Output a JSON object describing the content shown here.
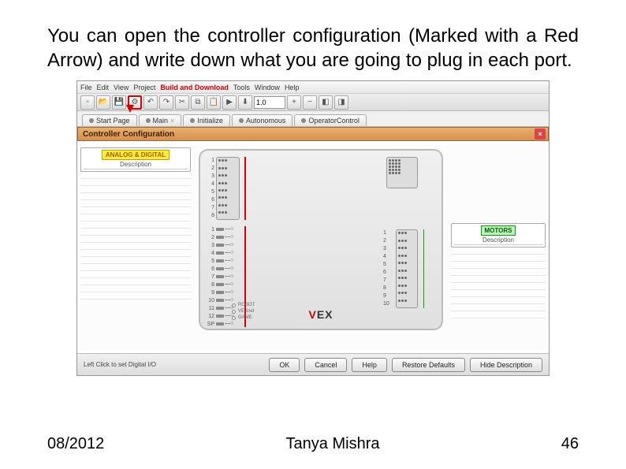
{
  "intro": "You can open the controller configuration (Marked with a Red Arrow) and write down what you are going to plug in each port.",
  "menu": {
    "items": [
      "File",
      "Edit",
      "View",
      "Project",
      "Build and Download",
      "Tools",
      "Window",
      "Help"
    ],
    "highlight_index": 4
  },
  "toolbar": {
    "zoom": "1.0",
    "icons": [
      "new",
      "open",
      "save",
      "config",
      "undo",
      "redo",
      "cut",
      "copy",
      "paste",
      "find",
      "build",
      "download",
      "play",
      "stop"
    ]
  },
  "tabs": [
    {
      "label": "Start Page",
      "closable": false
    },
    {
      "label": "Main",
      "closable": true
    },
    {
      "label": "Initialize",
      "closable": false
    },
    {
      "label": "Autonomous",
      "closable": false
    },
    {
      "label": "OperatorControl",
      "closable": false
    }
  ],
  "config": {
    "title": "Controller Configuration",
    "left_panel": {
      "heading": "ANALOG & DIGITAL",
      "sub": "Description",
      "rows": 18
    },
    "right_panel": {
      "heading": "MOTORS",
      "sub": "Description",
      "rows": 10
    },
    "analog_ports": [
      1,
      2,
      3,
      4,
      5,
      6,
      7,
      8
    ],
    "digital_ports": [
      1,
      2,
      3,
      4,
      5,
      6,
      7,
      8,
      9,
      10,
      11,
      12,
      "SP"
    ],
    "motor_ports": [
      1,
      2,
      3,
      4,
      5,
      6,
      7,
      8,
      9,
      10
    ],
    "status": [
      "ROBOT",
      "VEXnet",
      "GAME"
    ],
    "logo_v": "V",
    "logo_ex": "EX",
    "line_colors": {
      "analog": "#d00000",
      "digital": "#d00000",
      "motor": "#00aa00"
    }
  },
  "bottombar": {
    "hint": "Left Click to set Digital I/O",
    "buttons": [
      "OK",
      "Cancel",
      "Help",
      "Restore Defaults",
      "Hide Description"
    ]
  },
  "footer": {
    "date": "08/2012",
    "author": "Tanya Mishra",
    "page": "46"
  }
}
